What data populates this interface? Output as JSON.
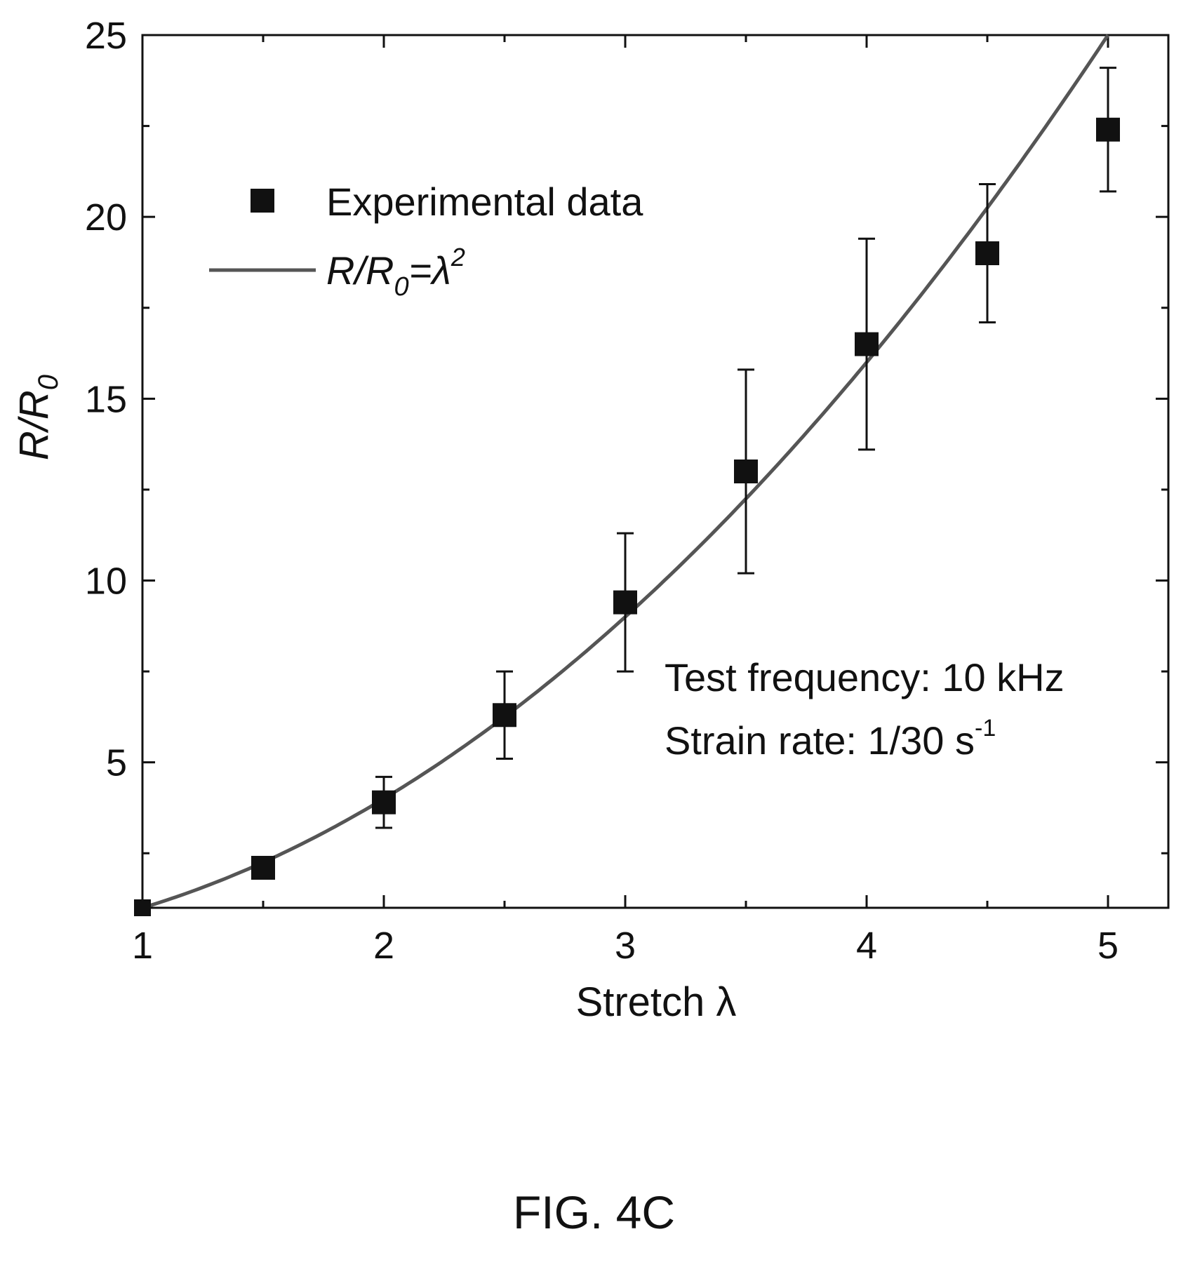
{
  "chart_data": {
    "type": "scatter",
    "xlabel": "Stretch λ",
    "ylabel": "R/R0",
    "xlim": [
      1,
      5.25
    ],
    "ylim": [
      1,
      25
    ],
    "x_ticks": [
      1,
      2,
      3,
      4,
      5
    ],
    "y_ticks": [
      5,
      10,
      15,
      20,
      25
    ],
    "grid": false,
    "legend_position": "upper-left",
    "series": [
      {
        "name": "Experimental data",
        "marker": "square",
        "x": [
          1,
          1.5,
          2,
          2.5,
          3,
          3.5,
          4,
          4.5,
          5
        ],
        "y": [
          1.0,
          2.1,
          3.9,
          6.3,
          9.4,
          13.0,
          16.5,
          19.0,
          22.4
        ],
        "error": [
          0,
          0,
          0.7,
          1.2,
          1.9,
          2.8,
          2.9,
          1.9,
          1.7
        ]
      },
      {
        "name": "R/R0=λ^2",
        "marker": "line",
        "formula": "y = x^2"
      }
    ],
    "annotations": [
      "Test frequency: 10 kHz",
      "Strain rate: 1/30 s^-1"
    ]
  },
  "legend": {
    "experimental_label": "Experimental data",
    "fit_label_base": "R/R",
    "fit_label_sub": "0",
    "fit_label_eq": "=λ",
    "fit_label_sup": "2"
  },
  "axes": {
    "x_title": "Stretch λ",
    "y_title_base": "R/R",
    "y_title_sub": "0"
  },
  "notes": {
    "line1": "Test frequency: 10 kHz",
    "line2_base": "Strain rate: 1/30 s",
    "line2_sup": "-1"
  },
  "caption": "FIG. 4C",
  "colors": {
    "ink": "#111111",
    "curve": "#555555"
  }
}
